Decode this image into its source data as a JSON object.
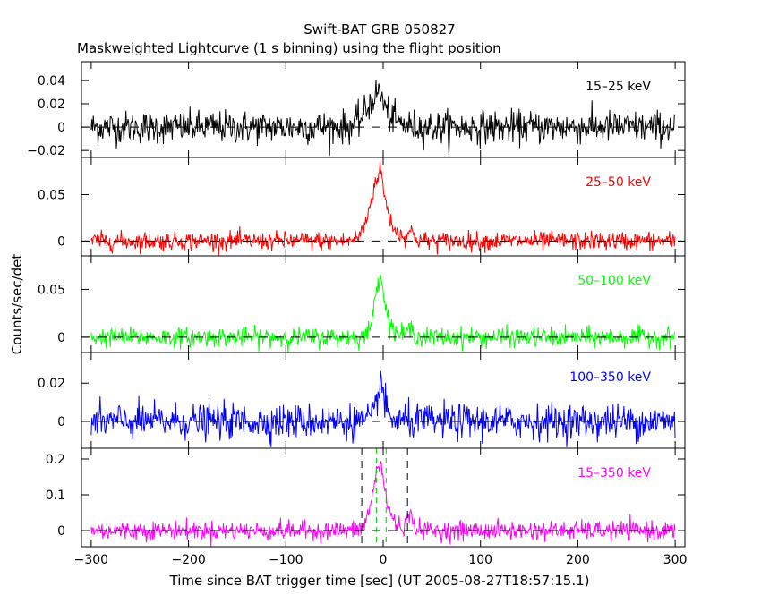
{
  "chart_data": {
    "type": "line",
    "title": "Swift-BAT GRB 050827",
    "subtitle": "Maskweighted Lightcurve (1 s binning) using the flight position",
    "xlabel": "Time since BAT trigger time [sec] (UT 2005-08-27T18:57:15.1)",
    "ylabel": "Counts/sec/det",
    "xlim": [
      -310,
      310
    ],
    "xticks": [
      -300,
      -200,
      -100,
      0,
      100,
      200,
      300
    ],
    "xtick_labels": [
      "-300",
      "-200",
      "-100",
      "0",
      "100",
      "200",
      "300"
    ],
    "panels": [
      {
        "name": "15-25 keV",
        "label": "15–25 keV",
        "color": "#000000",
        "ylim": [
          -0.026,
          0.056
        ],
        "yticks": [
          -0.02,
          0,
          0.02,
          0.04
        ],
        "ytick_labels": [
          "−0.02",
          "0",
          "0.02",
          "0.04"
        ],
        "noise": 0.007,
        "peak": 0.03,
        "rise": 12,
        "decay": 9,
        "offset": -3,
        "secondary": 0
      },
      {
        "name": "25-50 keV",
        "label": "25–50 keV",
        "color": "#ff0000",
        "ylim": [
          -0.016,
          0.09
        ],
        "yticks": [
          0,
          0.05
        ],
        "ytick_labels": [
          "0",
          "0.05"
        ],
        "noise": 0.005,
        "peak": 0.075,
        "rise": 10,
        "decay": 8,
        "offset": -2,
        "secondary": 0.008
      },
      {
        "name": "50-100 keV",
        "label": "50–100 keV",
        "color": "#00ff00",
        "ylim": [
          -0.016,
          0.085
        ],
        "yticks": [
          0,
          0.05
        ],
        "ytick_labels": [
          "0",
          "0.05"
        ],
        "noise": 0.005,
        "peak": 0.068,
        "rise": 6,
        "decay": 6,
        "offset": -2,
        "secondary": 0.008
      },
      {
        "name": "100-350 keV",
        "label": "100–350 keV",
        "color": "#0000ff",
        "ylim": [
          -0.014,
          0.036
        ],
        "yticks": [
          0,
          0.02
        ],
        "ytick_labels": [
          "0",
          "0.02"
        ],
        "noise": 0.0045,
        "peak": 0.022,
        "rise": 4,
        "decay": 4,
        "offset": -2,
        "secondary": 0
      },
      {
        "name": "15-350 keV",
        "label": "15–350 keV",
        "color": "#ff00ff",
        "ylim": [
          -0.045,
          0.23
        ],
        "yticks": [
          0,
          0.1,
          0.2
        ],
        "ytick_labels": [
          "0",
          "0.1",
          "0.2"
        ],
        "noise": 0.013,
        "peak": 0.19,
        "rise": 8,
        "decay": 7,
        "offset": -2,
        "secondary": 0.035,
        "vlines_black": [
          -22,
          25
        ],
        "vlines_green": [
          -7,
          3
        ]
      }
    ]
  }
}
